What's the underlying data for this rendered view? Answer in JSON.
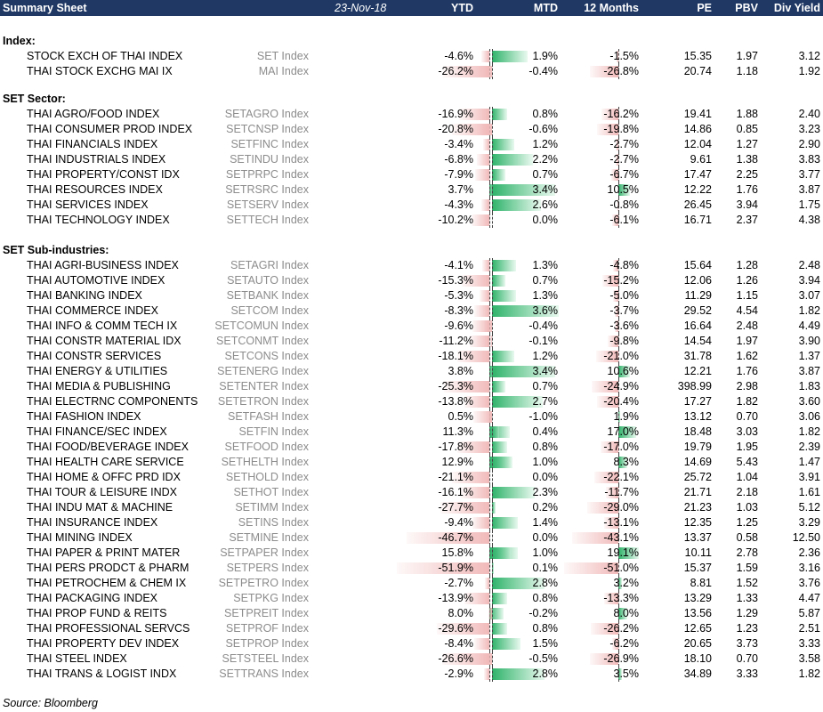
{
  "header": {
    "title": "Summary Sheet",
    "date": "23-Nov-18",
    "columns": {
      "ytd": "YTD",
      "mtd": "MTD",
      "m12": "12 Months",
      "pe": "PE",
      "pbv": "PBV",
      "dy": "Div Yield"
    }
  },
  "sections": [
    {
      "label": "Index:",
      "rows": [
        {
          "name": "STOCK EXCH OF THAI INDEX",
          "code": "SET Index",
          "ytd": "-4.6%",
          "mtd": "1.9%",
          "m12": "-1.5%",
          "pe": "15.35",
          "pbv": "1.97",
          "dy": "3.12"
        },
        {
          "name": "THAI STOCK EXCHG MAI IX",
          "code": "MAI Index",
          "ytd": "-26.2%",
          "mtd": "-0.4%",
          "m12": "-26.8%",
          "pe": "20.74",
          "pbv": "1.18",
          "dy": "1.92"
        }
      ]
    },
    {
      "label": "SET Sector:",
      "rows": [
        {
          "name": "THAI AGRO/FOOD INDEX",
          "code": "SETAGRO Index",
          "ytd": "-16.9%",
          "mtd": "0.8%",
          "m12": "-16.2%",
          "pe": "19.41",
          "pbv": "1.88",
          "dy": "2.40"
        },
        {
          "name": "THAI CONSUMER PROD INDEX",
          "code": "SETCNSP Index",
          "ytd": "-20.8%",
          "mtd": "-0.6%",
          "m12": "-19.8%",
          "pe": "14.86",
          "pbv": "0.85",
          "dy": "3.23"
        },
        {
          "name": "THAI FINANCIALS INDEX",
          "code": "SETFINC Index",
          "ytd": "-3.4%",
          "mtd": "1.2%",
          "m12": "-2.7%",
          "pe": "12.04",
          "pbv": "1.27",
          "dy": "2.90"
        },
        {
          "name": "THAI INDUSTRIALS INDEX",
          "code": "SETINDU Index",
          "ytd": "-6.8%",
          "mtd": "2.2%",
          "m12": "-2.7%",
          "pe": "9.61",
          "pbv": "1.38",
          "dy": "3.83"
        },
        {
          "name": "THAI PROPERTY/CONST IDX",
          "code": "SETPRPC Index",
          "ytd": "-7.9%",
          "mtd": "0.7%",
          "m12": "-6.7%",
          "pe": "17.47",
          "pbv": "2.25",
          "dy": "3.77"
        },
        {
          "name": "THAI RESOURCES INDEX",
          "code": "SETRSRC Index",
          "ytd": "3.7%",
          "mtd": "3.4%",
          "m12": "10.5%",
          "pe": "12.22",
          "pbv": "1.76",
          "dy": "3.87"
        },
        {
          "name": "THAI SERVICES INDEX",
          "code": "SETSERV Index",
          "ytd": "-4.3%",
          "mtd": "2.6%",
          "m12": "-0.8%",
          "pe": "26.45",
          "pbv": "3.94",
          "dy": "1.75"
        },
        {
          "name": "THAI TECHNOLOGY INDEX",
          "code": "SETTECH Index",
          "ytd": "-10.2%",
          "mtd": "0.0%",
          "m12": "-6.1%",
          "pe": "16.71",
          "pbv": "2.37",
          "dy": "4.38"
        }
      ]
    },
    {
      "label": "SET Sub-industries:",
      "rows": [
        {
          "name": "THAI AGRI-BUSINESS INDEX",
          "code": "SETAGRI Index",
          "ytd": "-4.1%",
          "mtd": "1.3%",
          "m12": "-4.8%",
          "pe": "15.64",
          "pbv": "1.28",
          "dy": "2.48"
        },
        {
          "name": "THAI AUTOMOTIVE INDEX",
          "code": "SETAUTO Index",
          "ytd": "-15.3%",
          "mtd": "0.7%",
          "m12": "-15.2%",
          "pe": "12.06",
          "pbv": "1.26",
          "dy": "3.94"
        },
        {
          "name": "THAI BANKING INDEX",
          "code": "SETBANK Index",
          "ytd": "-5.3%",
          "mtd": "1.3%",
          "m12": "-5.0%",
          "pe": "11.29",
          "pbv": "1.15",
          "dy": "3.07"
        },
        {
          "name": "THAI COMMERCE INDEX",
          "code": "SETCOM Index",
          "ytd": "-8.3%",
          "mtd": "3.6%",
          "m12": "-3.7%",
          "pe": "29.52",
          "pbv": "4.54",
          "dy": "1.82"
        },
        {
          "name": "THAI INFO & COMM TECH IX",
          "code": "SETCOMUN Index",
          "ytd": "-9.6%",
          "mtd": "-0.4%",
          "m12": "-3.6%",
          "pe": "16.64",
          "pbv": "2.48",
          "dy": "4.49"
        },
        {
          "name": "THAI CONSTR MATERIAL IDX",
          "code": "SETCONMT Index",
          "ytd": "-11.2%",
          "mtd": "-0.1%",
          "m12": "-9.8%",
          "pe": "14.54",
          "pbv": "1.97",
          "dy": "3.90"
        },
        {
          "name": "THAI CONSTR SERVICES",
          "code": "SETCONS Index",
          "ytd": "-18.1%",
          "mtd": "1.2%",
          "m12": "-21.0%",
          "pe": "31.78",
          "pbv": "1.62",
          "dy": "1.37"
        },
        {
          "name": "THAI ENERGY & UTILITIES",
          "code": "SETENERG Index",
          "ytd": "3.8%",
          "mtd": "3.4%",
          "m12": "10.6%",
          "pe": "12.21",
          "pbv": "1.76",
          "dy": "3.87"
        },
        {
          "name": "THAI MEDIA & PUBLISHING",
          "code": "SETENTER Index",
          "ytd": "-25.3%",
          "mtd": "0.7%",
          "m12": "-24.9%",
          "pe": "398.99",
          "pbv": "2.98",
          "dy": "1.83"
        },
        {
          "name": "THAI ELECTRNC COMPONENTS",
          "code": "SETETRON Index",
          "ytd": "-13.8%",
          "mtd": "2.7%",
          "m12": "-20.4%",
          "pe": "17.27",
          "pbv": "1.82",
          "dy": "3.60"
        },
        {
          "name": "THAI FASHION INDEX",
          "code": "SETFASH Index",
          "ytd": "0.5%",
          "mtd": "-1.0%",
          "m12": "1.9%",
          "pe": "13.12",
          "pbv": "0.70",
          "dy": "3.06"
        },
        {
          "name": "THAI FINANCE/SEC INDEX",
          "code": "SETFIN Index",
          "ytd": "11.3%",
          "mtd": "0.4%",
          "m12": "17.0%",
          "pe": "18.48",
          "pbv": "3.03",
          "dy": "1.82"
        },
        {
          "name": "THAI FOOD/BEVERAGE INDEX",
          "code": "SETFOOD Index",
          "ytd": "-17.8%",
          "mtd": "0.8%",
          "m12": "-17.0%",
          "pe": "19.79",
          "pbv": "1.95",
          "dy": "2.39"
        },
        {
          "name": "THAI HEALTH CARE SERVICE",
          "code": "SETHELTH Index",
          "ytd": "12.9%",
          "mtd": "1.0%",
          "m12": "8.3%",
          "pe": "14.69",
          "pbv": "5.43",
          "dy": "1.47"
        },
        {
          "name": "THAI HOME & OFFC PRD IDX",
          "code": "SETHOLD Index",
          "ytd": "-21.1%",
          "mtd": "0.0%",
          "m12": "-22.1%",
          "pe": "25.72",
          "pbv": "1.04",
          "dy": "3.91"
        },
        {
          "name": "THAI TOUR & LEISURE INDX",
          "code": "SETHOT Index",
          "ytd": "-16.1%",
          "mtd": "2.3%",
          "m12": "-11.7%",
          "pe": "21.71",
          "pbv": "2.18",
          "dy": "1.61"
        },
        {
          "name": "THAI INDU MAT & MACHINE",
          "code": "SETIMM Index",
          "ytd": "-27.7%",
          "mtd": "0.2%",
          "m12": "-29.0%",
          "pe": "21.23",
          "pbv": "1.03",
          "dy": "5.12"
        },
        {
          "name": "THAI INSURANCE INDEX",
          "code": "SETINS Index",
          "ytd": "-9.4%",
          "mtd": "1.4%",
          "m12": "-13.1%",
          "pe": "12.35",
          "pbv": "1.25",
          "dy": "3.29"
        },
        {
          "name": "THAI MINING INDEX",
          "code": "SETMINE Index",
          "ytd": "-46.7%",
          "mtd": "0.0%",
          "m12": "-43.1%",
          "pe": "13.37",
          "pbv": "0.58",
          "dy": "12.50"
        },
        {
          "name": "THAI PAPER & PRINT MATER",
          "code": "SETPAPER Index",
          "ytd": "15.8%",
          "mtd": "1.0%",
          "m12": "19.1%",
          "pe": "10.11",
          "pbv": "2.78",
          "dy": "2.36"
        },
        {
          "name": "THAI PERS PRODCT & PHARM",
          "code": "SETPERS Index",
          "ytd": "-51.9%",
          "mtd": "0.1%",
          "m12": "-51.0%",
          "pe": "15.37",
          "pbv": "1.59",
          "dy": "3.16"
        },
        {
          "name": "THAI PETROCHEM & CHEM IX",
          "code": "SETPETRO Index",
          "ytd": "-2.7%",
          "mtd": "2.8%",
          "m12": "3.2%",
          "pe": "8.81",
          "pbv": "1.52",
          "dy": "3.76"
        },
        {
          "name": "THAI PACKAGING INDEX",
          "code": "SETPKG Index",
          "ytd": "-13.9%",
          "mtd": "0.8%",
          "m12": "-13.3%",
          "pe": "13.29",
          "pbv": "1.33",
          "dy": "4.47"
        },
        {
          "name": "THAI PROP FUND & REITS",
          "code": "SETPREIT Index",
          "ytd": "8.0%",
          "mtd": "-0.2%",
          "m12": "8.0%",
          "pe": "13.56",
          "pbv": "1.29",
          "dy": "5.87"
        },
        {
          "name": "THAI PROFESSIONAL SERVCS",
          "code": "SETPROF Index",
          "ytd": "-29.6%",
          "mtd": "0.8%",
          "m12": "-26.2%",
          "pe": "12.65",
          "pbv": "1.23",
          "dy": "2.51"
        },
        {
          "name": "THAI PROPERTY DEV INDEX",
          "code": "SETPROP Index",
          "ytd": "-8.4%",
          "mtd": "1.5%",
          "m12": "-6.2%",
          "pe": "20.65",
          "pbv": "3.73",
          "dy": "3.33"
        },
        {
          "name": "THAI STEEL INDEX",
          "code": "SETSTEEL Index",
          "ytd": "-26.6%",
          "mtd": "-0.5%",
          "m12": "-26.9%",
          "pe": "18.10",
          "pbv": "0.70",
          "dy": "3.58"
        },
        {
          "name": "THAI TRANS & LOGIST INDX",
          "code": "SETTRANS Index",
          "ytd": "-2.9%",
          "mtd": "2.8%",
          "m12": "3.5%",
          "pe": "34.89",
          "pbv": "3.33",
          "dy": "1.82"
        }
      ]
    }
  ],
  "source": "Source: Bloomberg"
}
